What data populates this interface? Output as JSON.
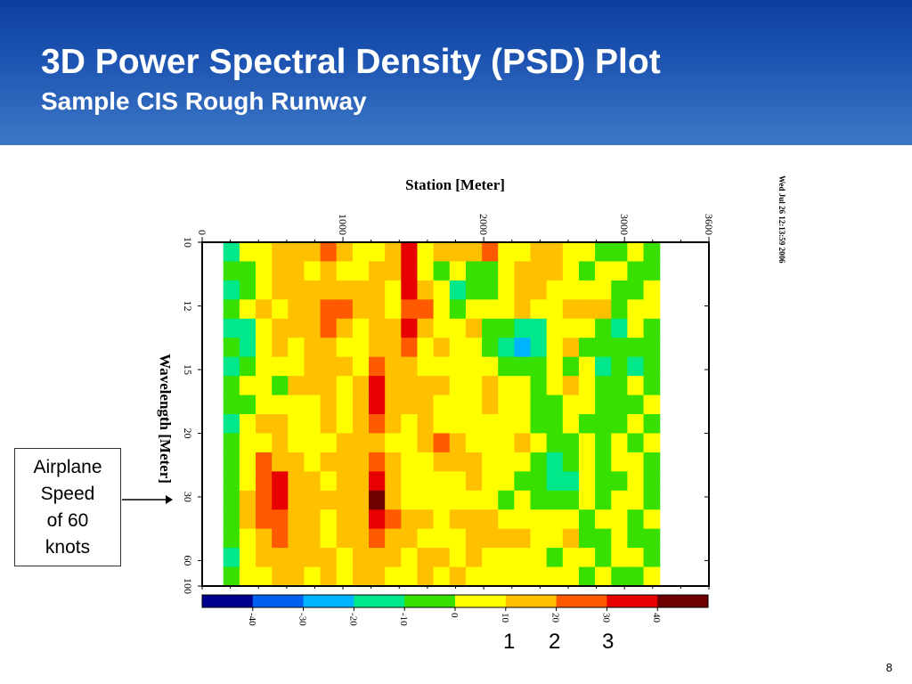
{
  "slide": {
    "title": "3D Power Spectral Density (PSD) Plot",
    "subtitle": "Sample CIS Rough Runway",
    "page_number": "8",
    "header_colors": [
      "#0b3f9e",
      "#3d78c6"
    ]
  },
  "callout": {
    "text": "Airplane\nSpeed\nof 60\nknots"
  },
  "markers": [
    "1",
    "2",
    "3"
  ],
  "timestamp": "Wed Jul 26 12:13:59 2006",
  "chart_data": {
    "type": "heatmap",
    "title": "",
    "xlabel": "Station [Meter]",
    "ylabel": "Wavelength [Meter]",
    "x_axis_position": "top",
    "x_ticks": [
      0,
      1000,
      2000,
      3000,
      3600
    ],
    "x_tick_labels": [
      "0",
      "1000",
      "2000",
      "3000",
      "3600"
    ],
    "xlim": [
      0,
      3600
    ],
    "y_ticks": [
      10,
      12,
      15,
      20,
      30,
      60,
      100
    ],
    "y_tick_labels": [
      "10",
      "12",
      "15",
      "20",
      "30",
      "60",
      "100"
    ],
    "y_scale": "reciprocal",
    "ylim": [
      10,
      100
    ],
    "data_extent_x": [
      150,
      3250
    ],
    "colorbar": {
      "ticks": [
        "-40",
        "-30",
        "-20",
        "-10",
        "0",
        "10",
        "20",
        "30",
        "40"
      ],
      "colors": [
        "#00008f",
        "#0060f0",
        "#00b4ff",
        "#00e88a",
        "#38e000",
        "#ffff00",
        "#ffc000",
        "#ff5a00",
        "#e60000",
        "#6e0000"
      ]
    },
    "rows": [
      [
        3,
        5,
        5,
        6,
        6,
        6,
        7,
        6,
        5,
        5,
        6,
        8,
        5,
        6,
        6,
        6,
        7,
        5,
        5,
        6,
        6,
        5,
        5,
        4,
        4,
        5,
        4
      ],
      [
        4,
        4,
        5,
        6,
        6,
        5,
        6,
        5,
        5,
        6,
        6,
        8,
        5,
        4,
        5,
        4,
        4,
        5,
        6,
        6,
        6,
        5,
        4,
        5,
        5,
        4,
        4
      ],
      [
        3,
        4,
        5,
        6,
        6,
        6,
        6,
        6,
        6,
        6,
        5,
        8,
        6,
        5,
        3,
        4,
        4,
        5,
        6,
        6,
        5,
        5,
        5,
        5,
        4,
        4,
        5
      ],
      [
        4,
        5,
        6,
        5,
        6,
        6,
        7,
        7,
        6,
        6,
        5,
        7,
        7,
        5,
        4,
        5,
        5,
        5,
        6,
        5,
        5,
        6,
        6,
        6,
        4,
        5,
        5
      ],
      [
        3,
        3,
        5,
        6,
        6,
        6,
        7,
        6,
        5,
        6,
        6,
        8,
        6,
        5,
        5,
        6,
        4,
        4,
        3,
        3,
        5,
        5,
        5,
        4,
        3,
        5,
        4
      ],
      [
        4,
        3,
        5,
        6,
        5,
        6,
        6,
        5,
        5,
        6,
        6,
        7,
        5,
        6,
        5,
        5,
        4,
        3,
        2,
        3,
        5,
        6,
        4,
        4,
        4,
        4,
        4
      ],
      [
        3,
        4,
        5,
        5,
        5,
        6,
        6,
        6,
        5,
        7,
        6,
        6,
        5,
        5,
        5,
        5,
        5,
        4,
        4,
        4,
        5,
        4,
        5,
        3,
        4,
        3,
        4
      ],
      [
        4,
        5,
        5,
        4,
        6,
        6,
        6,
        5,
        6,
        8,
        6,
        6,
        6,
        6,
        5,
        5,
        6,
        5,
        5,
        4,
        5,
        6,
        5,
        4,
        4,
        5,
        4
      ],
      [
        4,
        4,
        5,
        5,
        5,
        5,
        6,
        5,
        6,
        8,
        6,
        6,
        6,
        5,
        5,
        5,
        6,
        5,
        5,
        4,
        4,
        5,
        5,
        4,
        4,
        4,
        5
      ],
      [
        3,
        5,
        6,
        6,
        5,
        5,
        6,
        5,
        6,
        7,
        6,
        5,
        6,
        5,
        5,
        5,
        5,
        5,
        5,
        4,
        4,
        5,
        4,
        4,
        4,
        5,
        4
      ],
      [
        4,
        5,
        5,
        6,
        5,
        5,
        5,
        6,
        6,
        6,
        5,
        5,
        6,
        7,
        6,
        5,
        5,
        5,
        6,
        5,
        4,
        4,
        5,
        4,
        5,
        4,
        5
      ],
      [
        4,
        5,
        7,
        6,
        6,
        5,
        6,
        6,
        6,
        7,
        6,
        5,
        5,
        6,
        6,
        6,
        5,
        5,
        5,
        4,
        3,
        4,
        5,
        4,
        5,
        5,
        4
      ],
      [
        4,
        5,
        7,
        8,
        6,
        6,
        5,
        6,
        6,
        8,
        6,
        5,
        5,
        5,
        5,
        6,
        5,
        5,
        4,
        4,
        3,
        3,
        5,
        4,
        4,
        5,
        4
      ],
      [
        4,
        6,
        7,
        8,
        6,
        6,
        6,
        6,
        6,
        9,
        6,
        5,
        5,
        5,
        5,
        5,
        5,
        4,
        5,
        4,
        4,
        4,
        5,
        4,
        5,
        5,
        4
      ],
      [
        4,
        6,
        7,
        7,
        6,
        6,
        5,
        6,
        6,
        8,
        7,
        6,
        6,
        5,
        6,
        6,
        6,
        5,
        5,
        5,
        5,
        5,
        4,
        5,
        5,
        4,
        5
      ],
      [
        4,
        5,
        6,
        7,
        6,
        6,
        5,
        6,
        6,
        7,
        6,
        6,
        5,
        5,
        5,
        6,
        6,
        6,
        6,
        5,
        5,
        6,
        4,
        4,
        5,
        4,
        4
      ],
      [
        3,
        5,
        6,
        6,
        6,
        6,
        6,
        5,
        6,
        6,
        6,
        5,
        6,
        6,
        5,
        6,
        5,
        5,
        5,
        5,
        4,
        5,
        5,
        4,
        5,
        5,
        4
      ],
      [
        4,
        5,
        5,
        6,
        6,
        5,
        6,
        5,
        6,
        6,
        5,
        5,
        6,
        5,
        6,
        5,
        5,
        5,
        5,
        5,
        5,
        5,
        4,
        5,
        4,
        4,
        5
      ]
    ]
  }
}
